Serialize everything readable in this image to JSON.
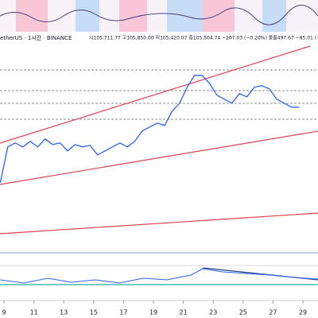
{
  "chart_data": {
    "type": "line",
    "symbol": "etherUS · 1시간 · BINANCE",
    "ohlc": "시105,711.77 고105,850.00 저105,420.07 종105,504.74 −207.03 (−0.20%) 볼륨497.67 −85.01 (−",
    "color": "#2962ff",
    "x": [
      8.75,
      9.25,
      9.75,
      10.25,
      10.75,
      11.25,
      11.75,
      12.25,
      12.75,
      13.25,
      13.75,
      14.25,
      14.75,
      15.25,
      15.75,
      16.25,
      16.75,
      17.25,
      17.75,
      18.25,
      18.75,
      19.25,
      19.75,
      20.25,
      20.75,
      21.25,
      21.75,
      22.25,
      22.75,
      23.25,
      23.75,
      24.25,
      24.75,
      25.25,
      25.75,
      26.25,
      26.75,
      27.25,
      27.75,
      28.25,
      28.75
    ],
    "values": [
      103604,
      104504,
      104604,
      104504,
      104644,
      104504,
      104704,
      104564,
      104604,
      104404,
      104564,
      104504,
      104544,
      104304,
      104404,
      104504,
      104604,
      104504,
      104644,
      104904,
      105004,
      105104,
      105044,
      105404,
      105604,
      106004,
      106304,
      106304,
      106104,
      105804,
      105704,
      105604,
      105844,
      105764,
      106004,
      106044,
      105964,
      105704,
      105604,
      105504,
      105504
    ],
    "xlim": [
      8.73,
      30.01
    ],
    "xticks": [
      9,
      11,
      13,
      15,
      17,
      19,
      21,
      23,
      25,
      27,
      29
    ],
    "ylim": [
      102200,
      107100
    ]
  }
}
